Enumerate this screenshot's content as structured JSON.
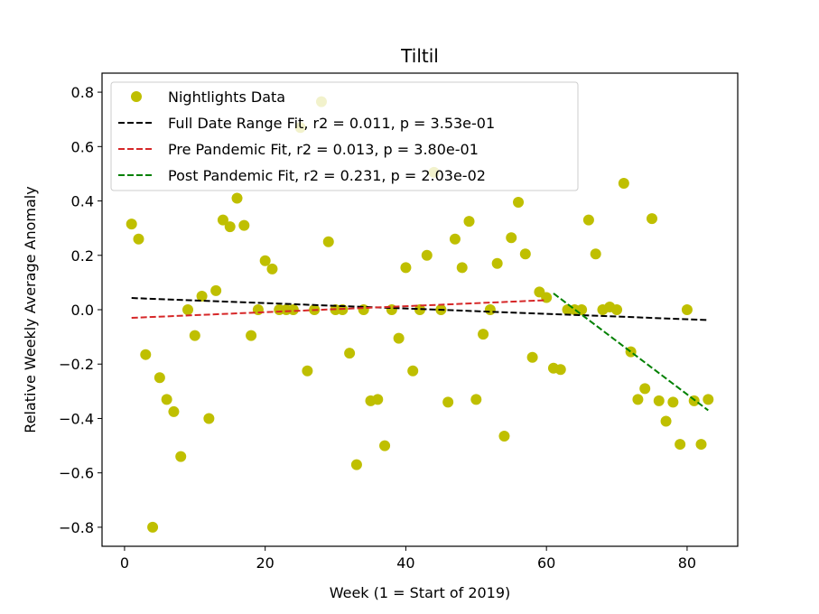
{
  "chart_data": {
    "type": "scatter",
    "title": "Tiltil",
    "xlabel": "Week (1 = Start of 2019)",
    "ylabel": "Relative Weekly Average Anomaly",
    "xlim": [
      -3.2,
      87.2
    ],
    "ylim": [
      -0.87,
      0.87
    ],
    "xticks": [
      0,
      20,
      40,
      60,
      80
    ],
    "xtick_labels": [
      "0",
      "20",
      "40",
      "60",
      "80"
    ],
    "yticks": [
      -0.8,
      -0.6,
      -0.4,
      -0.2,
      0.0,
      0.2,
      0.4,
      0.6,
      0.8
    ],
    "ytick_labels": [
      "−0.8",
      "−0.6",
      "−0.4",
      "−0.2",
      "0.0",
      "0.2",
      "0.4",
      "0.6",
      "0.8"
    ],
    "grid": false,
    "legend_position": "upper-left",
    "colors": {
      "points": "#bfbf00",
      "full_fit": "#000000",
      "pre_fit": "#d62728",
      "post_fit": "#008000"
    },
    "series": [
      {
        "name": "Nightlights Data",
        "kind": "scatter",
        "x": [
          1,
          2,
          3,
          4,
          5,
          6,
          7,
          8,
          9,
          10,
          11,
          12,
          13,
          14,
          15,
          16,
          17,
          18,
          19,
          20,
          21,
          22,
          23,
          24,
          25,
          26,
          27,
          28,
          29,
          30,
          31,
          32,
          33,
          34,
          35,
          36,
          37,
          38,
          39,
          40,
          41,
          42,
          43,
          44,
          45,
          46,
          47,
          48,
          49,
          50,
          51,
          52,
          53,
          54,
          55,
          56,
          57,
          58,
          59,
          60,
          61,
          62,
          63,
          64,
          65,
          66,
          67,
          68,
          69,
          70,
          71,
          72,
          73,
          74,
          75,
          76,
          77,
          78,
          79,
          80,
          81,
          82,
          83
        ],
        "y": [
          0.315,
          0.26,
          -0.165,
          -0.8,
          -0.25,
          -0.33,
          -0.375,
          -0.54,
          0.0,
          -0.095,
          0.05,
          -0.4,
          0.07,
          0.33,
          0.305,
          0.41,
          0.31,
          -0.095,
          0.0,
          0.18,
          0.15,
          0.0,
          0.0,
          0.0,
          0.67,
          -0.225,
          0.0,
          0.765,
          0.25,
          0.0,
          0.0,
          -0.16,
          -0.57,
          0.0,
          -0.335,
          -0.33,
          -0.5,
          0.0,
          -0.105,
          0.155,
          -0.225,
          0.0,
          0.2,
          0.505,
          0.0,
          -0.34,
          0.26,
          0.155,
          0.325,
          -0.33,
          -0.09,
          0.0,
          0.17,
          -0.465,
          0.265,
          0.395,
          0.205,
          -0.175,
          0.065,
          0.045,
          -0.215,
          -0.22,
          0.0,
          0.0,
          0.0,
          0.33,
          0.205,
          0.0,
          0.01,
          0.0,
          0.465,
          -0.155,
          -0.33,
          -0.29,
          0.335,
          -0.335,
          -0.41,
          -0.34,
          -0.495,
          0.0,
          -0.335,
          -0.495,
          -0.33
        ]
      },
      {
        "name": "Full Date Range Fit, r2 = 0.011, p = 3.53e-01",
        "kind": "line",
        "style": "dashed",
        "x": [
          1,
          83
        ],
        "y": [
          0.043,
          -0.038
        ]
      },
      {
        "name": "Pre Pandemic Fit, r2 = 0.013, p = 3.80e-01",
        "kind": "line",
        "style": "dashed",
        "x": [
          1,
          60
        ],
        "y": [
          -0.03,
          0.035
        ]
      },
      {
        "name": "Post Pandemic Fit, r2 = 0.231, p = 2.03e-02",
        "kind": "line",
        "style": "dashed",
        "x": [
          61,
          83
        ],
        "y": [
          0.06,
          -0.37
        ]
      }
    ]
  }
}
